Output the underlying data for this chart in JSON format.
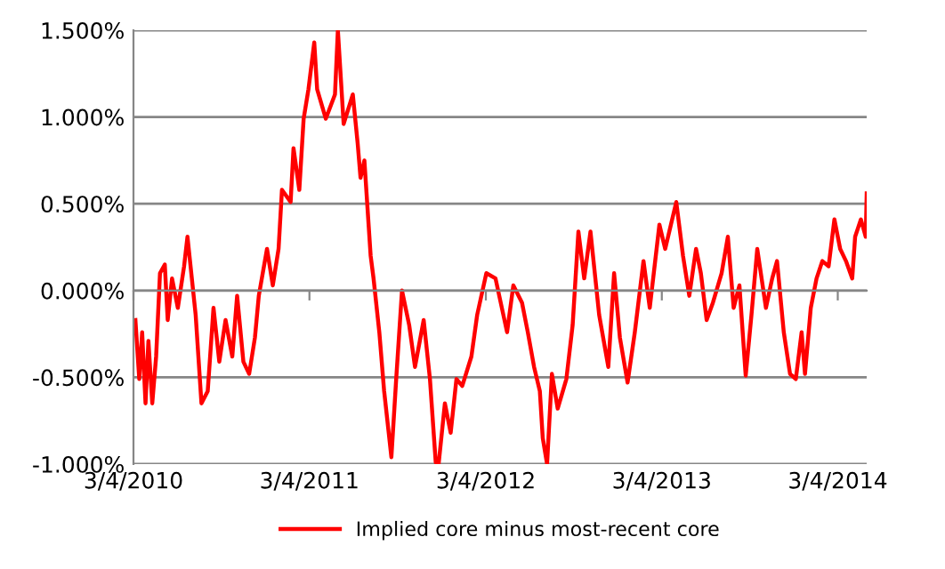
{
  "chart_data": {
    "type": "line",
    "x": [
      "2010-03-08",
      "2010-03-16",
      "2010-03-22",
      "2010-03-29",
      "2010-04-04",
      "2010-04-12",
      "2010-04-20",
      "2010-04-28",
      "2010-05-08",
      "2010-05-14",
      "2010-05-23",
      "2010-06-04",
      "2010-06-17",
      "2010-06-24",
      "2010-07-11",
      "2010-07-23",
      "2010-08-05",
      "2010-08-17",
      "2010-08-29",
      "2010-09-11",
      "2010-09-25",
      "2010-10-05",
      "2010-10-18",
      "2010-10-30",
      "2010-11-11",
      "2010-11-19",
      "2010-12-06",
      "2010-12-18",
      "2010-12-30",
      "2011-01-06",
      "2011-01-24",
      "2011-01-30",
      "2011-02-11",
      "2011-02-20",
      "2011-03-02",
      "2011-03-14",
      "2011-03-20",
      "2011-04-07",
      "2011-04-26",
      "2011-05-02",
      "2011-05-14",
      "2011-06-02",
      "2011-06-12",
      "2011-06-18",
      "2011-06-26",
      "2011-07-09",
      "2011-07-15",
      "2011-07-27",
      "2011-08-06",
      "2011-08-21",
      "2011-08-31",
      "2011-09-12",
      "2011-09-27",
      "2011-10-09",
      "2011-10-27",
      "2011-11-09",
      "2011-11-21",
      "2011-11-27",
      "2011-12-10",
      "2011-12-22",
      "2012-01-03",
      "2012-01-15",
      "2012-02-03",
      "2012-02-15",
      "2012-03-05",
      "2012-03-24",
      "2012-04-17",
      "2012-04-30",
      "2012-05-18",
      "2012-05-30",
      "2012-06-12",
      "2012-06-24",
      "2012-06-30",
      "2012-07-09",
      "2012-07-19",
      "2012-07-31",
      "2012-08-18",
      "2012-08-31",
      "2012-09-12",
      "2012-09-24",
      "2012-10-07",
      "2012-10-25",
      "2012-11-13",
      "2012-11-25",
      "2012-12-07",
      "2012-12-23",
      "2013-01-07",
      "2013-01-25",
      "2013-02-07",
      "2013-02-27",
      "2013-03-11",
      "2013-04-03",
      "2013-04-17",
      "2013-04-30",
      "2013-05-14",
      "2013-05-24",
      "2013-06-05",
      "2013-06-18",
      "2013-07-06",
      "2013-07-19",
      "2013-07-31",
      "2013-08-12",
      "2013-08-25",
      "2013-09-06",
      "2013-09-18",
      "2013-10-06",
      "2013-10-19",
      "2013-10-29",
      "2013-11-12",
      "2013-11-25",
      "2013-12-07",
      "2013-12-19",
      "2013-12-26",
      "2014-01-07",
      "2014-01-19",
      "2014-01-31",
      "2014-02-13",
      "2014-02-25",
      "2014-03-09",
      "2014-03-21",
      "2014-04-03",
      "2014-04-09",
      "2014-04-21",
      "2014-05-01",
      "2014-05-03"
    ],
    "series": [
      {
        "name": "Implied core minus most-recent core",
        "color": "#ff0000",
        "values": [
          -0.17,
          -0.51,
          -0.24,
          -0.65,
          -0.29,
          -0.65,
          -0.38,
          0.1,
          0.15,
          -0.17,
          0.07,
          -0.1,
          0.14,
          0.31,
          -0.14,
          -0.65,
          -0.58,
          -0.1,
          -0.41,
          -0.17,
          -0.38,
          -0.03,
          -0.41,
          -0.48,
          -0.27,
          -0.03,
          0.24,
          0.03,
          0.24,
          0.58,
          0.51,
          0.82,
          0.58,
          0.99,
          1.16,
          1.43,
          1.16,
          0.99,
          1.13,
          1.5,
          0.96,
          1.13,
          0.85,
          0.65,
          0.75,
          0.2,
          0.07,
          -0.24,
          -0.58,
          -0.96,
          -0.51,
          0.0,
          -0.2,
          -0.44,
          -0.17,
          -0.51,
          -0.99,
          -1.0,
          -0.65,
          -0.82,
          -0.51,
          -0.55,
          -0.38,
          -0.14,
          0.1,
          0.07,
          -0.24,
          0.03,
          -0.07,
          -0.24,
          -0.44,
          -0.58,
          -0.85,
          -1.0,
          -0.48,
          -0.68,
          -0.51,
          -0.2,
          0.34,
          0.07,
          0.34,
          -0.14,
          -0.44,
          0.1,
          -0.27,
          -0.53,
          -0.24,
          0.17,
          -0.1,
          0.38,
          0.24,
          0.51,
          0.2,
          -0.03,
          0.24,
          0.1,
          -0.17,
          -0.07,
          0.1,
          0.31,
          -0.1,
          0.03,
          -0.49,
          -0.14,
          0.24,
          -0.1,
          0.07,
          0.17,
          -0.24,
          -0.48,
          -0.51,
          -0.24,
          -0.48,
          -0.1,
          0.07,
          0.17,
          0.14,
          0.41,
          0.24,
          0.17,
          0.07,
          0.31,
          0.41,
          0.31,
          0.56
        ]
      }
    ],
    "xlim": [
      "2010-03-04",
      "2014-05-03"
    ],
    "xticks": [
      {
        "value": "2010-03-04",
        "label": "3/4/2010"
      },
      {
        "value": "2011-03-04",
        "label": "3/4/2011"
      },
      {
        "value": "2012-03-04",
        "label": "3/4/2012"
      },
      {
        "value": "2013-03-04",
        "label": "3/4/2013"
      },
      {
        "value": "2014-03-04",
        "label": "3/4/2014"
      }
    ],
    "ylim": [
      -1.0,
      1.5
    ],
    "yticks": [
      {
        "value": -1.0,
        "label": "-1.000%"
      },
      {
        "value": -0.5,
        "label": "-0.500%"
      },
      {
        "value": 0.0,
        "label": "0.000%"
      },
      {
        "value": 0.5,
        "label": "0.500%"
      },
      {
        "value": 1.0,
        "label": "1.000%"
      },
      {
        "value": 1.5,
        "label": "1.500%"
      }
    ],
    "grid": "y",
    "legend": "bottom",
    "marker": "none",
    "line_style": "solid"
  }
}
